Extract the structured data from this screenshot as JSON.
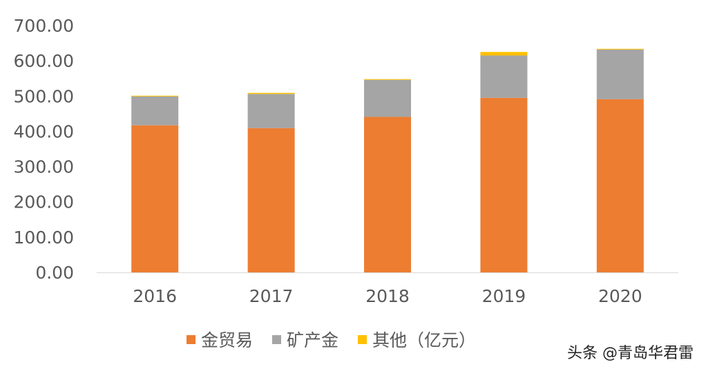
{
  "chart_data": {
    "type": "bar",
    "stacked": true,
    "title": "",
    "xlabel": "",
    "ylabel": "",
    "unit": "亿元",
    "categories": [
      "2016",
      "2017",
      "2018",
      "2019",
      "2020"
    ],
    "series": [
      {
        "name": "金贸易",
        "color": "#ED7D31",
        "values": [
          417,
          409,
          441,
          495,
          491
        ]
      },
      {
        "name": "矿产金",
        "color": "#A5A5A5",
        "values": [
          82,
          97,
          105,
          120,
          141
        ]
      },
      {
        "name": "其他（亿元）",
        "color": "#FFC000",
        "values": [
          2,
          3,
          2,
          10,
          2
        ]
      }
    ],
    "ylim": [
      0,
      700
    ],
    "yticks": [
      "0.00",
      "100.00",
      "200.00",
      "300.00",
      "400.00",
      "500.00",
      "600.00",
      "700.00"
    ],
    "grid": false,
    "legend_position": "bottom"
  },
  "watermark": "头条 @青岛华君雷"
}
